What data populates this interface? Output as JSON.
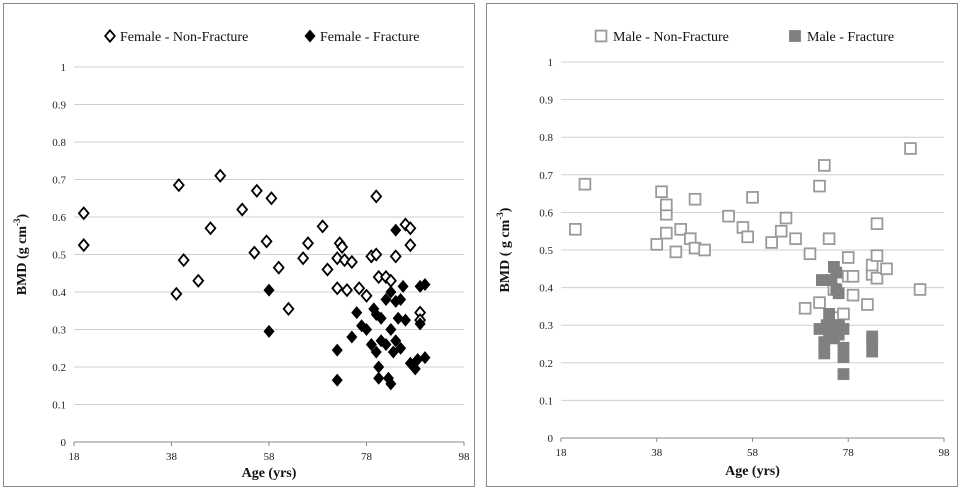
{
  "chart_data": [
    {
      "type": "scatter",
      "xlabel": "Age (yrs)",
      "ylabel_main": "BMD (g cm",
      "ylabel_sup": "-3",
      "ylabel_close": ")",
      "xlim": [
        18,
        98
      ],
      "ylim": [
        0,
        1
      ],
      "xticks": [
        "18",
        "38",
        "58",
        "78",
        "98"
      ],
      "yticks": [
        "0",
        "0.1",
        "0.2",
        "0.3",
        "0.4",
        "0.5",
        "0.6",
        "0.7",
        "0.8",
        "0.9",
        "1"
      ],
      "grid": "horizontal",
      "legend": "top",
      "marker": "diamond",
      "series": [
        {
          "name": "Female - Non-Fracture",
          "filled": false,
          "color": "#000000",
          "points": [
            [
              20,
              0.61
            ],
            [
              20,
              0.525
            ],
            [
              39.5,
              0.685
            ],
            [
              40.5,
              0.485
            ],
            [
              39,
              0.395
            ],
            [
              43.5,
              0.43
            ],
            [
              46,
              0.57
            ],
            [
              48,
              0.71
            ],
            [
              52.5,
              0.62
            ],
            [
              55.5,
              0.67
            ],
            [
              55,
              0.505
            ],
            [
              57.5,
              0.535
            ],
            [
              58.5,
              0.65
            ],
            [
              60,
              0.465
            ],
            [
              62,
              0.355
            ],
            [
              65,
              0.49
            ],
            [
              66,
              0.53
            ],
            [
              69,
              0.575
            ],
            [
              70,
              0.46
            ],
            [
              72,
              0.49
            ],
            [
              72.5,
              0.53
            ],
            [
              73,
              0.52
            ],
            [
              73.5,
              0.485
            ],
            [
              72,
              0.41
            ],
            [
              74,
              0.405
            ],
            [
              75,
              0.48
            ],
            [
              76.5,
              0.41
            ],
            [
              78,
              0.39
            ],
            [
              79,
              0.495
            ],
            [
              80,
              0.5
            ],
            [
              80,
              0.655
            ],
            [
              80.5,
              0.44
            ],
            [
              82,
              0.44
            ],
            [
              83,
              0.43
            ],
            [
              84,
              0.495
            ],
            [
              86,
              0.58
            ],
            [
              87,
              0.57
            ],
            [
              87,
              0.525
            ],
            [
              89,
              0.345
            ],
            [
              89,
              0.325
            ]
          ]
        },
        {
          "name": "Female - Fracture",
          "filled": true,
          "color": "#000000",
          "points": [
            [
              58,
              0.405
            ],
            [
              58,
              0.295
            ],
            [
              72,
              0.245
            ],
            [
              72,
              0.165
            ],
            [
              75,
              0.28
            ],
            [
              76,
              0.345
            ],
            [
              77,
              0.31
            ],
            [
              78,
              0.3
            ],
            [
              79,
              0.26
            ],
            [
              79.5,
              0.355
            ],
            [
              80,
              0.34
            ],
            [
              80,
              0.24
            ],
            [
              80.5,
              0.2
            ],
            [
              80.5,
              0.17
            ],
            [
              81,
              0.33
            ],
            [
              81,
              0.27
            ],
            [
              82,
              0.38
            ],
            [
              82,
              0.26
            ],
            [
              82.5,
              0.17
            ],
            [
              83,
              0.4
            ],
            [
              83,
              0.3
            ],
            [
              83,
              0.155
            ],
            [
              83.5,
              0.24
            ],
            [
              84,
              0.565
            ],
            [
              84,
              0.375
            ],
            [
              84,
              0.27
            ],
            [
              84.5,
              0.33
            ],
            [
              85,
              0.38
            ],
            [
              85,
              0.25
            ],
            [
              85.5,
              0.415
            ],
            [
              86,
              0.325
            ],
            [
              87,
              0.21
            ],
            [
              88,
              0.195
            ],
            [
              88.5,
              0.22
            ],
            [
              89,
              0.415
            ],
            [
              89,
              0.315
            ],
            [
              90,
              0.225
            ],
            [
              90,
              0.42
            ]
          ]
        }
      ]
    },
    {
      "type": "scatter",
      "xlabel": "Age (yrs)",
      "ylabel_main": "BMD ( g cm",
      "ylabel_sup": "-3",
      "ylabel_close": ")",
      "xlim": [
        18,
        98
      ],
      "ylim": [
        0,
        1
      ],
      "xticks": [
        "18",
        "38",
        "58",
        "78",
        "98"
      ],
      "yticks": [
        "0",
        "0.1",
        "0.2",
        "0.3",
        "0.4",
        "0.5",
        "0.6",
        "0.7",
        "0.8",
        "0.9",
        "1"
      ],
      "grid": "horizontal",
      "legend": "top",
      "marker": "square",
      "series": [
        {
          "name": "Male - Non-Fracture",
          "filled": false,
          "color": "#9a9a9a",
          "points": [
            [
              21,
              0.555
            ],
            [
              23,
              0.675
            ],
            [
              38,
              0.515
            ],
            [
              39,
              0.655
            ],
            [
              40,
              0.595
            ],
            [
              40,
              0.62
            ],
            [
              40,
              0.545
            ],
            [
              42,
              0.495
            ],
            [
              43,
              0.555
            ],
            [
              45,
              0.53
            ],
            [
              46,
              0.505
            ],
            [
              46,
              0.635
            ],
            [
              48,
              0.5
            ],
            [
              53,
              0.59
            ],
            [
              56,
              0.56
            ],
            [
              57,
              0.535
            ],
            [
              58,
              0.64
            ],
            [
              62,
              0.52
            ],
            [
              64,
              0.55
            ],
            [
              65,
              0.585
            ],
            [
              67,
              0.53
            ],
            [
              69,
              0.345
            ],
            [
              70,
              0.49
            ],
            [
              72,
              0.36
            ],
            [
              72,
              0.67
            ],
            [
              73,
              0.725
            ],
            [
              74,
              0.53
            ],
            [
              75,
              0.395
            ],
            [
              76,
              0.32
            ],
            [
              77,
              0.33
            ],
            [
              78,
              0.48
            ],
            [
              78,
              0.43
            ],
            [
              79,
              0.38
            ],
            [
              79,
              0.43
            ],
            [
              82,
              0.355
            ],
            [
              83,
              0.435
            ],
            [
              83,
              0.46
            ],
            [
              84,
              0.57
            ],
            [
              84,
              0.485
            ],
            [
              84,
              0.425
            ],
            [
              86,
              0.45
            ],
            [
              91,
              0.77
            ],
            [
              93,
              0.395
            ]
          ]
        },
        {
          "name": "Male - Fracture",
          "filled": true,
          "color": "#808080",
          "points": [
            [
              72,
              0.29
            ],
            [
              72.5,
              0.42
            ],
            [
              73,
              0.225
            ],
            [
              73,
              0.255
            ],
            [
              73.5,
              0.3
            ],
            [
              74,
              0.28
            ],
            [
              74,
              0.33
            ],
            [
              74.5,
              0.42
            ],
            [
              75,
              0.3
            ],
            [
              75,
              0.455
            ],
            [
              75,
              0.265
            ],
            [
              75.5,
              0.44
            ],
            [
              75.5,
              0.395
            ],
            [
              76,
              0.385
            ],
            [
              76,
              0.3
            ],
            [
              76,
              0.275
            ],
            [
              77,
              0.29
            ],
            [
              77,
              0.24
            ],
            [
              77,
              0.215
            ],
            [
              77,
              0.17
            ],
            [
              83,
              0.27
            ],
            [
              83,
              0.26
            ],
            [
              83,
              0.23
            ]
          ]
        }
      ]
    }
  ]
}
